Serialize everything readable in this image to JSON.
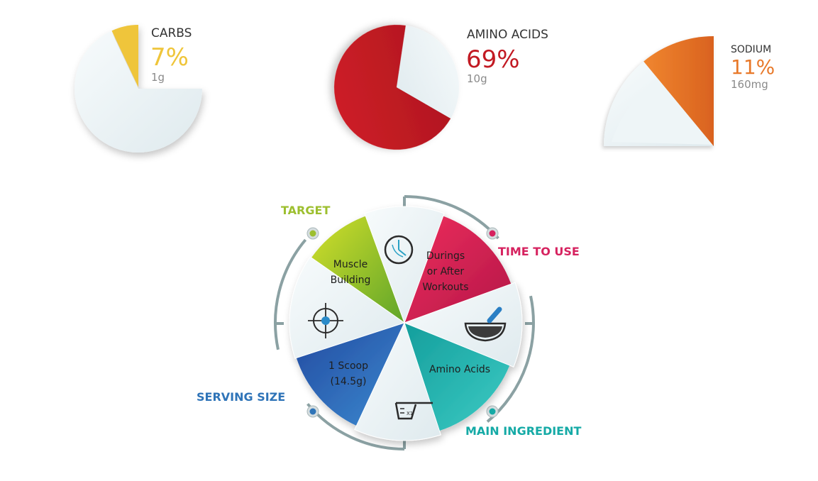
{
  "chart_data": [
    {
      "type": "pie",
      "slices": [
        {
          "name": "CARBS",
          "value": 7,
          "display": "7%",
          "amount": "1g",
          "color": "#efc53a"
        }
      ]
    },
    {
      "type": "pie",
      "slices": [
        {
          "name": "AMINO ACIDS",
          "value": 69,
          "display": "69%",
          "amount": "10g",
          "color": "#c21a23"
        }
      ]
    },
    {
      "type": "pie",
      "slices": [
        {
          "name": "SODIUM",
          "value": 11,
          "display": "11%",
          "amount": "160mg",
          "color": "#e8792a"
        }
      ]
    }
  ],
  "info_wheel": {
    "categories": [
      {
        "label": "TARGET",
        "value": "Muscle\nBuilding",
        "color": "#9dbf2f",
        "icon": "target-icon"
      },
      {
        "label": "TIME TO USE",
        "value": "Durings\nor After\nWorkouts",
        "color": "#d6225f",
        "icon": "clock-icon"
      },
      {
        "label": "MAIN INGREDIENT",
        "value": "Amino Acids",
        "color": "#15aaa6",
        "icon": "mortar-pestle-icon"
      },
      {
        "label": "SERVING SIZE",
        "value": "1 Scoop\n(14.5g)",
        "color": "#2f74b8",
        "icon": "measuring-scoop-icon"
      }
    ],
    "scoop_mark": "X1"
  }
}
